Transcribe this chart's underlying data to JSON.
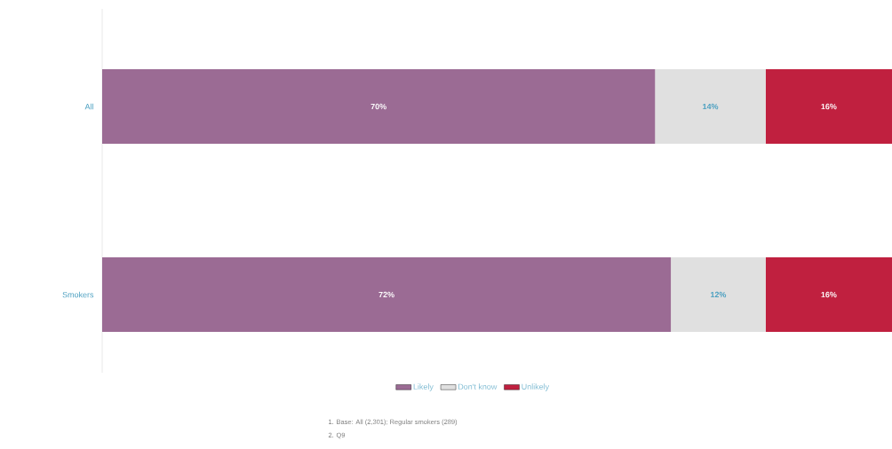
{
  "chart_data": {
    "type": "bar",
    "orientation": "horizontal",
    "stacked": true,
    "categories": [
      "All",
      "Smokers"
    ],
    "series": [
      {
        "name": "Likely",
        "color": "#9b6b94",
        "values": [
          70,
          72
        ],
        "value_labels": [
          "70%",
          "72%"
        ]
      },
      {
        "name": "Don't know",
        "color": "#e0e0e0",
        "values": [
          14,
          12
        ],
        "value_labels": [
          "14%",
          "12%"
        ]
      },
      {
        "name": "Unlikely",
        "color": "#c0203f",
        "values": [
          16,
          16
        ],
        "value_labels": [
          "16%",
          "16%"
        ]
      }
    ],
    "legend": "bottom",
    "tick_labels": "y",
    "annotations": [
      "1.  Base: All (2,301); Regular smokers (289)",
      "2.  Q9"
    ]
  }
}
